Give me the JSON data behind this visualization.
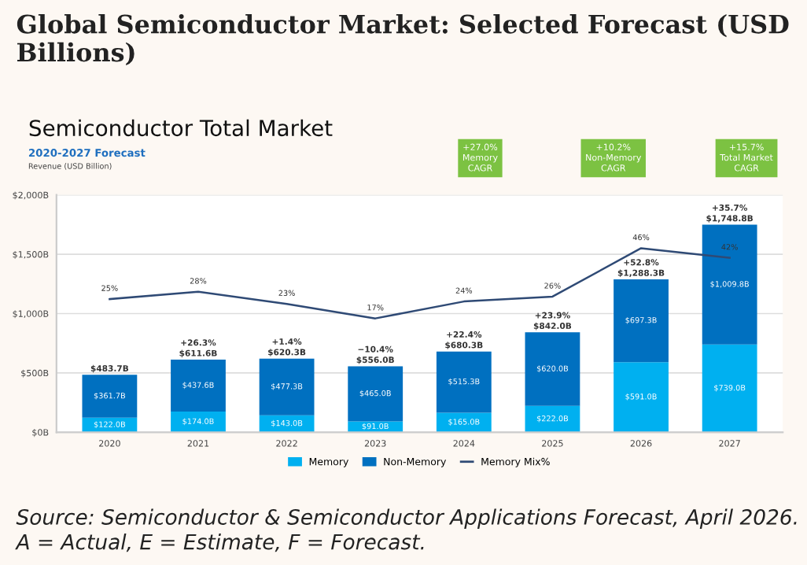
{
  "chart_data": {
    "type": "bar",
    "stacked": true,
    "title": "Global Semiconductor Market: Selected Forecast (USD Billions)",
    "subtitle": "Semiconductor Total Market",
    "categories": [
      "2020",
      "2021",
      "2022",
      "2023",
      "2024",
      "2025",
      "2026",
      "2027"
    ],
    "series": [
      {
        "name": "Memory",
        "color": "#00b0f0",
        "values": [
          122.0,
          174.0,
          143.0,
          91.0,
          165.0,
          222.0,
          591.0,
          739.0
        ],
        "value_labels": [
          "$122.0B",
          "$174.0B",
          "$143.0B",
          "$91.0B",
          "$165.0B",
          "$222.0B",
          "$591.0B",
          "$739.0B"
        ]
      },
      {
        "name": "Non-Memory",
        "color": "#0070c0",
        "values": [
          361.7,
          437.6,
          477.3,
          465.0,
          515.3,
          620.0,
          697.3,
          1009.8
        ],
        "value_labels": [
          "$361.7B",
          "$437.6B",
          "$477.3B",
          "$465.0B",
          "$515.3B",
          "$620.0B",
          "$697.3B",
          "$1,009.8B"
        ]
      },
      {
        "name": "Memory Mix%",
        "type": "line",
        "axis": "y2",
        "color": "#2f4a75",
        "marker": "none",
        "values": [
          25,
          28,
          23,
          17,
          24,
          26,
          46,
          42
        ],
        "value_labels": [
          "25%",
          "28%",
          "23%",
          "17%",
          "24%",
          "26%",
          "46%",
          "42%"
        ]
      }
    ],
    "totals": [
      "$483.7B",
      "+26.3%\n$611.6B",
      "+1.4%\n$620.3B",
      "−10.4%\n$556.0B",
      "+22.4%\n$680.3B",
      "+23.9%\n$842.0B",
      "+52.8%\n$1,288.3B",
      "+35.7%\n$1,748.8B"
    ],
    "ylim": [
      0,
      2000
    ],
    "yticks": [
      {
        "value": 0,
        "label": "$0B"
      },
      {
        "value": 500,
        "label": "$500B"
      },
      {
        "value": 1000,
        "label": "$1,000B"
      },
      {
        "value": 1500,
        "label": "$1,500B"
      },
      {
        "value": 2000,
        "label": "$2,000B"
      }
    ],
    "y2lim": [
      -30,
      68
    ],
    "grid": "y",
    "legend": "bottom",
    "annotations": [
      "2020-2027 Forecast",
      "Revenue (USD Billion)",
      "+27.0%\nMemory\nCAGR",
      "+10.2%\nNon-Memory\nCAGR",
      "+15.7%\nTotal Market\nCAGR",
      "Source: Semiconductor & Semiconductor Applications Forecast, April 2026. A = Actual, E = Estimate, F = Forecast."
    ]
  }
}
